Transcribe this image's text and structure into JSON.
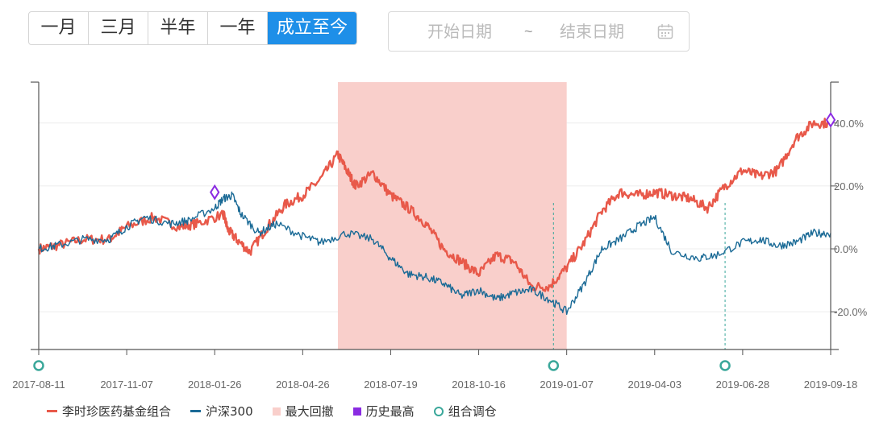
{
  "range_tabs": [
    {
      "label": "一月",
      "active": false
    },
    {
      "label": "三月",
      "active": false
    },
    {
      "label": "半年",
      "active": false
    },
    {
      "label": "一年",
      "active": false
    },
    {
      "label": "成立至今",
      "active": true
    }
  ],
  "date_range": {
    "start_placeholder": "开始日期",
    "separator": "~",
    "end_placeholder": "结束日期",
    "icon": "calendar-icon"
  },
  "colors": {
    "portfolio": "#e8594a",
    "index": "#1a6a96",
    "drawdown": "#f9cfcb",
    "high": "#8a2be2",
    "rebalance": "#3aa79a",
    "accent": "#1e8fe8"
  },
  "legend": [
    {
      "label": "李时珍医药基金组合",
      "kind": "line",
      "color": "#e8594a"
    },
    {
      "label": "沪深300",
      "kind": "line",
      "color": "#1a6a96"
    },
    {
      "label": "最大回撤",
      "kind": "box",
      "color": "#f9cfcb"
    },
    {
      "label": "历史最高",
      "kind": "box",
      "color": "#8a2be2"
    },
    {
      "label": "组合调仓",
      "kind": "ring",
      "color": "#3aa79a"
    }
  ],
  "chart_data": {
    "type": "line",
    "x_tick_labels": [
      "2017-08-11",
      "2017-11-07",
      "2018-01-26",
      "2018-04-26",
      "2018-07-19",
      "2018-10-16",
      "2019-01-07",
      "2019-04-03",
      "2019-06-28",
      "2019-09-18"
    ],
    "y_tick_labels": [
      "40.0%",
      "20.0%",
      "0.0%",
      "-20.0%"
    ],
    "y_ticks": [
      40,
      20,
      0,
      -20
    ],
    "ylim": [
      -32,
      53
    ],
    "xlim": [
      0,
      9
    ],
    "grid": true,
    "legend_position": "bottom",
    "series": [
      {
        "name": "李时珍医药基金组合",
        "color": "#e8594a",
        "x": [
          0,
          0.2,
          0.5,
          0.8,
          1.0,
          1.3,
          1.6,
          1.8,
          2.1,
          2.15,
          2.25,
          2.4,
          2.6,
          2.8,
          3.0,
          3.2,
          3.4,
          3.5,
          3.6,
          3.8,
          4.0,
          4.2,
          4.4,
          4.6,
          4.8,
          5.0,
          5.2,
          5.4,
          5.6,
          5.8,
          6.0,
          6.2,
          6.4,
          6.6,
          6.8,
          7.0,
          7.2,
          7.4,
          7.6,
          7.8,
          8.0,
          8.2,
          8.4,
          8.6,
          8.8,
          9.0
        ],
        "y": [
          0,
          1,
          3,
          3,
          7,
          10,
          7,
          8,
          11,
          6,
          3,
          -1,
          7,
          14,
          17,
          22,
          30,
          25,
          20,
          24,
          17,
          13,
          8,
          0,
          -4,
          -8,
          -2,
          -4,
          -12,
          -12,
          -6,
          2,
          12,
          18,
          17,
          18,
          17,
          16,
          13,
          20,
          25,
          23,
          25,
          35,
          40,
          40
        ]
      },
      {
        "name": "沪深300",
        "color": "#1a6a96",
        "x": [
          0,
          0.2,
          0.5,
          0.8,
          1.0,
          1.2,
          1.5,
          1.7,
          2.0,
          2.1,
          2.2,
          2.3,
          2.5,
          2.7,
          3.0,
          3.2,
          3.5,
          3.8,
          4.0,
          4.2,
          4.4,
          4.6,
          4.8,
          5.0,
          5.2,
          5.4,
          5.6,
          5.8,
          6.0,
          6.2,
          6.4,
          6.6,
          6.8,
          7.0,
          7.2,
          7.5,
          7.7,
          8.0,
          8.2,
          8.4,
          8.6,
          8.8,
          9.0
        ],
        "y": [
          0,
          1,
          3,
          3,
          7,
          10,
          8,
          9,
          13,
          16,
          17,
          11,
          5,
          8,
          4,
          2,
          5,
          3,
          -3,
          -8,
          -9,
          -11,
          -15,
          -13,
          -16,
          -14,
          -13,
          -16,
          -20,
          -11,
          0,
          3,
          7,
          10,
          -1,
          -3,
          -2,
          2,
          3,
          1,
          2,
          5,
          5
        ]
      }
    ],
    "max_drawdown": {
      "from": 3.4,
      "to": 6.0
    },
    "history_high": [
      {
        "series": "沪深300",
        "x": 2.0,
        "y": 18
      },
      {
        "series": "李时珍医药基金组合",
        "x": 9.0,
        "y": 41
      }
    ],
    "rebalance_points": [
      0,
      5.85,
      7.8
    ]
  }
}
